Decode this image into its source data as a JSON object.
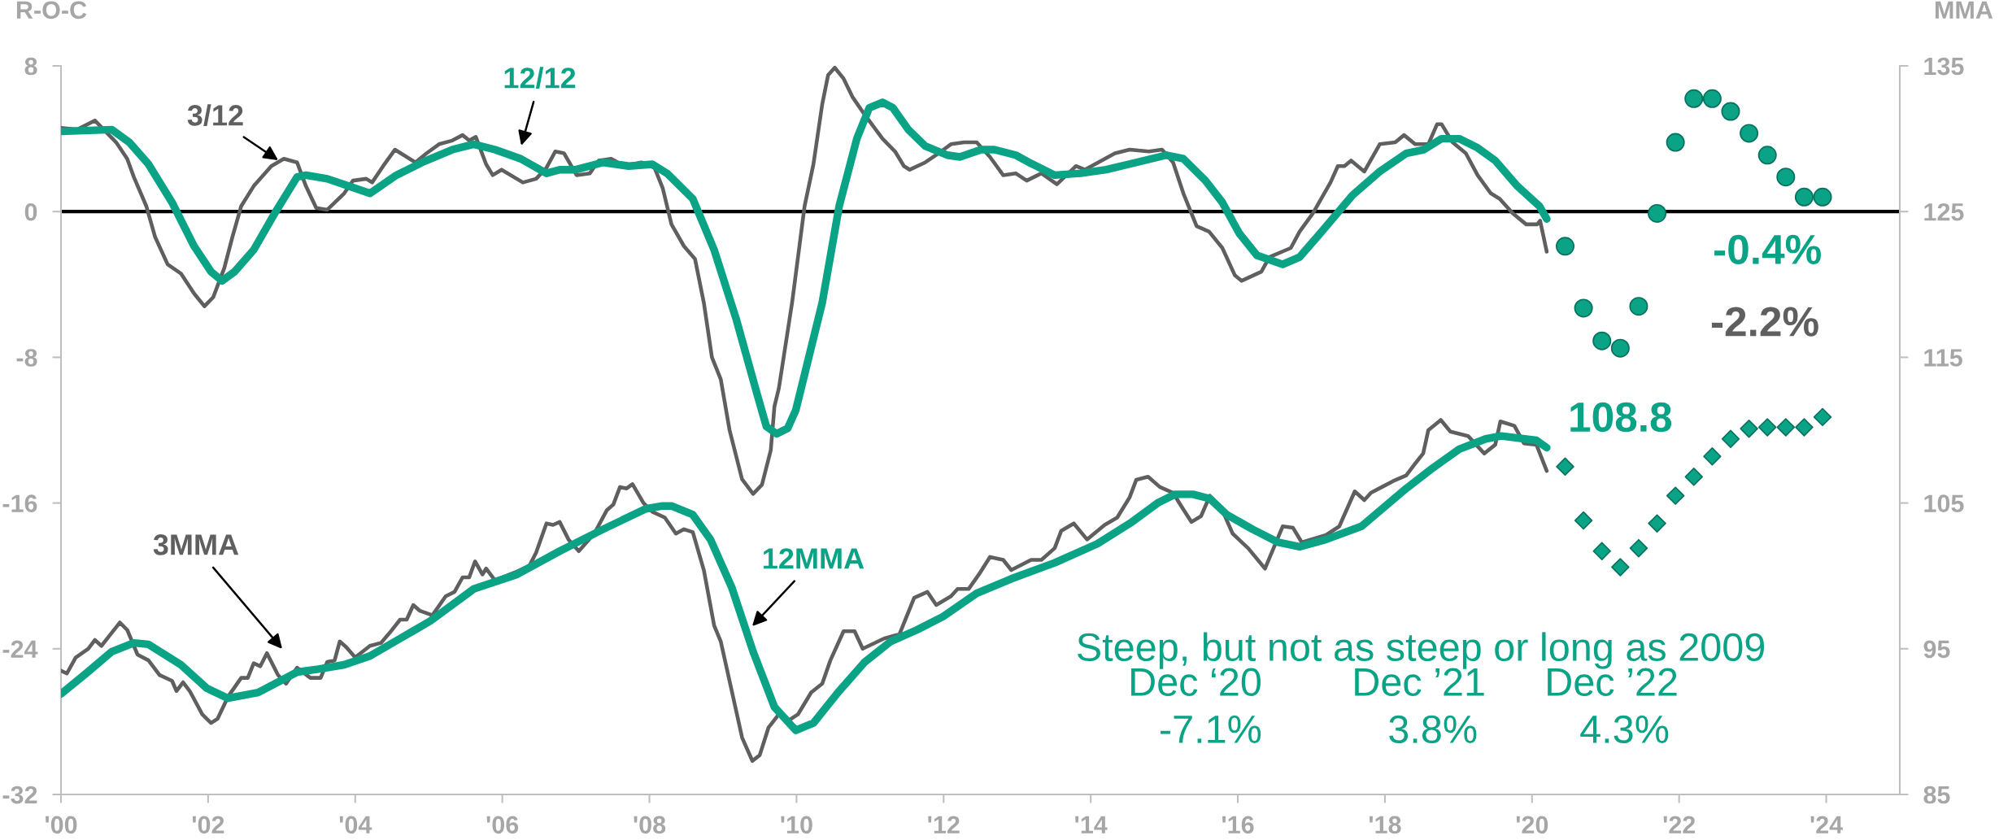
{
  "chart_data": {
    "type": "line",
    "ylabel": "R-O-C",
    "y2label": "MMA",
    "xlim": [
      2000,
      2025
    ],
    "xticks": [
      {
        "value": 2000,
        "label": "'00"
      },
      {
        "value": 2002,
        "label": "'02"
      },
      {
        "value": 2004,
        "label": "'04"
      },
      {
        "value": 2006,
        "label": "'06"
      },
      {
        "value": 2008,
        "label": "'08"
      },
      {
        "value": 2010,
        "label": "'10"
      },
      {
        "value": 2012,
        "label": "'12"
      },
      {
        "value": 2014,
        "label": "'14"
      },
      {
        "value": 2016,
        "label": "'16"
      },
      {
        "value": 2018,
        "label": "'18"
      },
      {
        "value": 2020,
        "label": "'20"
      },
      {
        "value": 2022,
        "label": "'22"
      },
      {
        "value": 2024,
        "label": "'24"
      }
    ],
    "ylim": [
      -32,
      8
    ],
    "yticks": [
      -32,
      -24,
      -16,
      -8,
      0,
      8
    ],
    "y2lim": [
      85,
      135
    ],
    "y2ticks": [
      85,
      95,
      105,
      115,
      125,
      135
    ],
    "legend": false,
    "ref_lines": [
      {
        "axis": "y",
        "value": 0,
        "color": "#000000"
      }
    ],
    "series": [
      {
        "name": "3/12",
        "color": "#5f5f5f",
        "x": [
          2000.0,
          2000.22,
          2000.46,
          2000.63,
          2000.75,
          2000.9,
          2000.99,
          2001.16,
          2001.28,
          2001.45,
          2001.63,
          2001.81,
          2001.95,
          2002.07,
          2002.22,
          2002.33,
          2002.45,
          2002.62,
          2002.86,
          2003.03,
          2003.21,
          2003.33,
          2003.47,
          2003.62,
          2003.85,
          2003.97,
          2004.15,
          2004.23,
          2004.38,
          2004.54,
          2004.82,
          2004.97,
          2005.14,
          2005.32,
          2005.46,
          2005.55,
          2005.64,
          2005.78,
          2005.87,
          2005.99,
          2006.28,
          2006.46,
          2006.6,
          2006.72,
          2006.84,
          2007.01,
          2007.19,
          2007.31,
          2007.48,
          2007.66,
          2007.89,
          2008.07,
          2008.18,
          2008.3,
          2008.47,
          2008.62,
          2008.74,
          2008.85,
          2008.97,
          2009.09,
          2009.26,
          2009.41,
          2009.53,
          2009.65,
          2009.7,
          2009.76,
          2009.94,
          2010.11,
          2010.23,
          2010.35,
          2010.43,
          2010.52,
          2010.64,
          2010.76,
          2010.93,
          2011.17,
          2011.34,
          2011.46,
          2011.54,
          2011.75,
          2011.93,
          2012.1,
          2012.28,
          2012.45,
          2012.63,
          2012.81,
          2012.98,
          2013.13,
          2013.33,
          2013.54,
          2013.8,
          2013.92,
          2014.33,
          2014.53,
          2014.79,
          2014.97,
          2015.12,
          2015.26,
          2015.44,
          2015.61,
          2015.79,
          2015.96,
          2016.05,
          2016.32,
          2016.43,
          2016.72,
          2016.84,
          2017.02,
          2017.26,
          2017.36,
          2017.45,
          2017.54,
          2017.72,
          2017.93,
          2018.14,
          2018.26,
          2018.41,
          2018.59,
          2018.71,
          2018.77,
          2018.92,
          2019.1,
          2019.26,
          2019.44,
          2019.56,
          2019.74,
          2019.92,
          2020.07,
          2020.11,
          2020.2
        ],
        "values": [
          4.6,
          4.5,
          5.0,
          4.3,
          3.8,
          2.9,
          1.9,
          0.3,
          -1.4,
          -2.9,
          -3.4,
          -4.5,
          -5.2,
          -4.7,
          -3.1,
          -1.4,
          0.3,
          1.4,
          2.5,
          2.9,
          2.7,
          1.4,
          0.2,
          0.1,
          1.0,
          1.7,
          1.8,
          1.6,
          2.5,
          3.4,
          2.7,
          3.2,
          3.7,
          3.9,
          4.2,
          3.9,
          4.1,
          2.6,
          2.0,
          2.3,
          1.6,
          1.8,
          2.4,
          3.3,
          3.2,
          2.0,
          2.1,
          2.8,
          2.9,
          2.5,
          2.7,
          2.4,
          1.3,
          -0.7,
          -1.9,
          -2.6,
          -5.0,
          -8.0,
          -9.2,
          -12.0,
          -14.7,
          -15.5,
          -15.0,
          -13.1,
          -10.7,
          -9.7,
          -5.0,
          0.3,
          2.6,
          5.9,
          7.5,
          7.9,
          7.3,
          6.3,
          5.3,
          4.0,
          3.3,
          2.5,
          2.3,
          2.7,
          3.2,
          3.7,
          3.8,
          3.8,
          3.0,
          2.0,
          2.1,
          1.7,
          2.1,
          1.5,
          2.5,
          2.3,
          3.2,
          3.4,
          3.3,
          3.4,
          2.7,
          1.0,
          -0.8,
          -1.1,
          -2.0,
          -3.5,
          -3.8,
          -3.3,
          -2.5,
          -2.0,
          -1.1,
          -0.1,
          1.6,
          2.5,
          2.5,
          2.8,
          2.2,
          3.7,
          3.8,
          4.2,
          3.7,
          3.7,
          4.8,
          4.8,
          3.8,
          3.2,
          2.0,
          1.0,
          0.7,
          -0.1,
          -0.7,
          -0.7,
          -0.5,
          -2.2
        ]
      },
      {
        "name": "12/12",
        "color": "#0aa386",
        "x": [
          2000.0,
          2000.69,
          2000.93,
          2001.19,
          2001.51,
          2001.81,
          2002.04,
          2002.19,
          2002.36,
          2002.62,
          2002.92,
          2003.21,
          2003.33,
          2003.62,
          2003.91,
          2004.2,
          2004.56,
          2004.91,
          2005.32,
          2005.61,
          2005.9,
          2006.25,
          2006.6,
          2006.78,
          2007.0,
          2007.37,
          2007.72,
          2008.04,
          2008.24,
          2008.59,
          2008.88,
          2009.18,
          2009.47,
          2009.59,
          2009.73,
          2009.88,
          2009.99,
          2010.35,
          2010.58,
          2010.82,
          2010.99,
          2011.17,
          2011.31,
          2011.52,
          2011.75,
          2012.05,
          2012.22,
          2012.51,
          2012.69,
          2012.98,
          2013.16,
          2013.51,
          2013.86,
          2014.21,
          2014.62,
          2015.03,
          2015.26,
          2015.56,
          2015.79,
          2016.02,
          2016.26,
          2016.61,
          2016.84,
          2017.14,
          2017.56,
          2017.93,
          2018.29,
          2018.53,
          2018.77,
          2019.01,
          2019.26,
          2019.5,
          2019.8,
          2020.1,
          2020.2
        ],
        "values": [
          4.4,
          4.5,
          3.8,
          2.6,
          0.5,
          -1.9,
          -3.3,
          -3.8,
          -3.3,
          -2.1,
          0.0,
          1.9,
          2.0,
          1.8,
          1.4,
          1.0,
          2.0,
          2.7,
          3.4,
          3.7,
          3.4,
          2.9,
          2.1,
          2.3,
          2.3,
          2.7,
          2.5,
          2.6,
          2.1,
          0.7,
          -2.1,
          -5.9,
          -10.1,
          -11.8,
          -12.2,
          -11.9,
          -10.9,
          -5.0,
          0.3,
          4.0,
          5.7,
          6.0,
          5.7,
          4.5,
          3.6,
          3.1,
          3.0,
          3.4,
          3.4,
          3.1,
          2.7,
          2.0,
          2.1,
          2.3,
          2.7,
          3.1,
          2.9,
          1.7,
          0.5,
          -1.2,
          -2.4,
          -2.9,
          -2.5,
          -1.1,
          0.9,
          2.2,
          3.2,
          3.4,
          4.0,
          4.0,
          3.5,
          2.8,
          1.4,
          0.3,
          -0.4
        ]
      },
      {
        "name": "3MMA",
        "axis": "y2",
        "color": "#5f5f5f",
        "x": [
          2000.0,
          2000.08,
          2000.2,
          2000.37,
          2000.46,
          2000.55,
          2000.66,
          2000.8,
          2000.9,
          2001.04,
          2001.19,
          2001.34,
          2001.51,
          2001.57,
          2001.66,
          2001.75,
          2001.92,
          2002.04,
          2002.13,
          2002.27,
          2002.45,
          2002.54,
          2002.62,
          2002.71,
          2002.8,
          2002.95,
          2003.06,
          2003.21,
          2003.39,
          2003.53,
          2003.62,
          2003.72,
          2003.79,
          2003.88,
          2004.0,
          2004.2,
          2004.35,
          2004.47,
          2004.61,
          2004.7,
          2004.79,
          2004.88,
          2005.05,
          2005.23,
          2005.35,
          2005.46,
          2005.55,
          2005.63,
          2005.73,
          2005.78,
          2005.9,
          2006.2,
          2006.37,
          2006.46,
          2006.6,
          2006.69,
          2006.78,
          2006.9,
          2007.04,
          2007.25,
          2007.42,
          2007.51,
          2007.6,
          2007.69,
          2007.77,
          2007.92,
          2008.04,
          2008.21,
          2008.36,
          2008.47,
          2008.59,
          2008.74,
          2008.88,
          2008.97,
          2009.12,
          2009.26,
          2009.4,
          2009.5,
          2009.62,
          2009.76,
          2009.9,
          2010.02,
          2010.2,
          2010.35,
          2010.46,
          2010.64,
          2010.79,
          2010.9,
          2011.19,
          2011.4,
          2011.6,
          2011.78,
          2011.9,
          2012.1,
          2012.19,
          2012.34,
          2012.48,
          2012.63,
          2012.81,
          2012.92,
          2013.19,
          2013.33,
          2013.51,
          2013.6,
          2013.77,
          2013.95,
          2014.19,
          2014.36,
          2014.53,
          2014.62,
          2014.78,
          2014.94,
          2015.12,
          2015.23,
          2015.37,
          2015.5,
          2015.62,
          2015.79,
          2015.93,
          2016.14,
          2016.37,
          2016.61,
          2016.75,
          2016.87,
          2017.2,
          2017.38,
          2017.59,
          2017.72,
          2017.81,
          2017.96,
          2018.11,
          2018.29,
          2018.41,
          2018.52,
          2018.59,
          2018.76,
          2018.89,
          2019.13,
          2019.35,
          2019.5,
          2019.57,
          2019.76,
          2019.89,
          2020.06,
          2020.2
        ],
        "values": [
          93.5,
          93.3,
          94.4,
          95.0,
          95.6,
          95.2,
          95.9,
          96.8,
          96.3,
          94.6,
          94.2,
          93.2,
          92.8,
          92.1,
          92.7,
          92.1,
          90.5,
          89.9,
          90.2,
          91.7,
          93.0,
          93.0,
          94.0,
          93.8,
          94.7,
          93.2,
          92.6,
          93.7,
          93.0,
          93.0,
          94.1,
          94.2,
          95.5,
          95.1,
          94.4,
          95.2,
          95.4,
          96.1,
          97.0,
          97.0,
          98.0,
          97.6,
          97.3,
          98.6,
          98.9,
          99.9,
          99.9,
          101.0,
          100.1,
          100.5,
          99.7,
          100.3,
          100.7,
          101.6,
          103.6,
          103.5,
          103.7,
          102.5,
          101.7,
          102.9,
          104.5,
          104.9,
          106.1,
          106.0,
          106.3,
          105.0,
          104.4,
          104.0,
          102.9,
          103.2,
          103.0,
          100.4,
          96.6,
          95.5,
          92.1,
          88.9,
          87.3,
          87.7,
          89.6,
          90.5,
          90.1,
          90.5,
          92.0,
          92.6,
          94.2,
          96.2,
          96.2,
          95.0,
          95.7,
          96.0,
          98.5,
          98.9,
          98.0,
          98.6,
          99.1,
          99.1,
          100.1,
          101.3,
          101.1,
          100.4,
          101.1,
          101.1,
          101.9,
          103.1,
          103.6,
          102.5,
          103.5,
          104.0,
          105.4,
          106.6,
          106.8,
          106.1,
          105.7,
          104.8,
          103.7,
          104.1,
          105.5,
          104.5,
          102.9,
          101.9,
          100.5,
          103.4,
          103.3,
          102.3,
          102.8,
          103.4,
          105.8,
          105.2,
          105.7,
          106.1,
          106.5,
          106.9,
          107.7,
          108.4,
          110.0,
          110.7,
          109.9,
          109.6,
          108.4,
          109.0,
          110.6,
          110.3,
          109.1,
          109.0,
          107.2
        ]
      },
      {
        "name": "12MMA",
        "axis": "y2",
        "color": "#0aa386",
        "x": [
          2000.0,
          2000.34,
          2000.69,
          2000.99,
          2001.19,
          2001.63,
          2001.98,
          2002.27,
          2002.68,
          2003.21,
          2003.5,
          2003.85,
          2004.2,
          2004.61,
          2005.02,
          2005.61,
          2006.2,
          2006.78,
          2007.37,
          2007.95,
          2008.18,
          2008.3,
          2008.59,
          2008.83,
          2009.12,
          2009.41,
          2009.7,
          2009.99,
          2010.23,
          2010.58,
          2010.93,
          2011.28,
          2011.64,
          2011.99,
          2012.45,
          2012.92,
          2013.51,
          2014.09,
          2014.56,
          2014.91,
          2015.15,
          2015.39,
          2015.62,
          2015.85,
          2016.2,
          2016.55,
          2016.84,
          2017.2,
          2017.68,
          2018.29,
          2018.65,
          2019.01,
          2019.37,
          2019.58,
          2020.06,
          2020.2
        ],
        "values": [
          91.9,
          93.3,
          94.8,
          95.4,
          95.3,
          93.9,
          92.3,
          91.6,
          92.0,
          93.4,
          93.6,
          93.9,
          94.5,
          95.7,
          96.9,
          99.1,
          100.1,
          101.7,
          103.2,
          104.6,
          104.8,
          104.8,
          104.2,
          102.5,
          99.2,
          94.8,
          91.0,
          89.4,
          89.9,
          92.1,
          94.1,
          95.5,
          96.3,
          97.2,
          98.8,
          99.8,
          100.9,
          102.2,
          103.7,
          105.0,
          105.6,
          105.6,
          105.3,
          104.2,
          103.2,
          102.3,
          102.0,
          102.5,
          103.4,
          106.0,
          107.4,
          108.7,
          109.4,
          109.6,
          109.3,
          108.8
        ]
      },
      {
        "type": "scatter",
        "marker": "circle",
        "color": "#0aa386",
        "x": [
          2020.45,
          2020.7,
          2020.95,
          2021.2,
          2021.45,
          2021.7,
          2021.95,
          2022.2,
          2022.45,
          2022.7,
          2022.95,
          2023.2,
          2023.45,
          2023.7,
          2023.95
        ],
        "values": [
          -1.9,
          -5.3,
          -7.1,
          -7.5,
          -5.2,
          -0.1,
          3.8,
          6.2,
          6.2,
          5.5,
          4.3,
          3.1,
          1.9,
          0.8,
          0.8
        ]
      },
      {
        "type": "scatter",
        "marker": "diamond",
        "axis": "y2",
        "color": "#0aa386",
        "x": [
          2020.45,
          2020.7,
          2020.95,
          2021.2,
          2021.45,
          2021.7,
          2021.95,
          2022.2,
          2022.45,
          2022.7,
          2022.95,
          2023.2,
          2023.45,
          2023.7,
          2023.95
        ],
        "values": [
          107.5,
          103.8,
          101.7,
          100.6,
          101.9,
          103.6,
          105.5,
          106.8,
          108.2,
          109.4,
          110.1,
          110.2,
          110.2,
          110.2,
          110.9
        ]
      }
    ],
    "annotations": [
      "-0.4%",
      "-2.2%",
      "108.8",
      "Steep, but not as steep or long as 2009",
      "Dec ‘20",
      "-7.1%",
      "Dec ’21",
      "3.8%",
      "Dec ’22",
      "4.3%"
    ]
  }
}
